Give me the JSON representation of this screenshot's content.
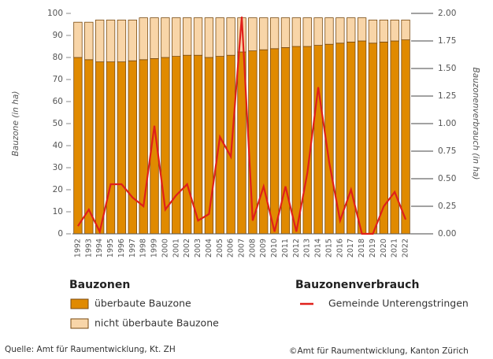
{
  "chart_data": {
    "type": "bar-line",
    "categories": [
      "1992",
      "1993",
      "1994",
      "1995",
      "1996",
      "1997",
      "1998",
      "1999",
      "2000",
      "2001",
      "2002",
      "2003",
      "2004",
      "2005",
      "2006",
      "2007",
      "2008",
      "2009",
      "2010",
      "2011",
      "2012",
      "2013",
      "2014",
      "2015",
      "2016",
      "2017",
      "2018",
      "2019",
      "2020",
      "2021",
      "2022"
    ],
    "ylabel": "Bauzone (in ha)",
    "y2label": "Bauzonenverbrauch (in ha)",
    "ylim": [
      0,
      100
    ],
    "yticks": [
      0,
      10,
      20,
      30,
      40,
      50,
      60,
      70,
      80,
      90,
      100
    ],
    "y2lim": [
      0,
      2
    ],
    "y2ticks": [
      {
        "value": 0,
        "label": "0.00"
      },
      {
        "value": 0.25,
        "label": "0.25"
      },
      {
        "value": 0.5,
        "label": "0.50"
      },
      {
        "value": 0.75,
        "label": "0.75"
      },
      {
        "value": 1,
        "label": "1.00"
      },
      {
        "value": 1.25,
        "label": "1.25"
      },
      {
        "value": 1.5,
        "label": "1.50"
      },
      {
        "value": 1.75,
        "label": "1.75"
      },
      {
        "value": 2,
        "label": "2.00"
      }
    ],
    "legend_titles": [
      "Bauzonen",
      "Bauzonenverbrauch"
    ],
    "series": [
      {
        "name": "überbaute Bauzone",
        "color": "#e08a00",
        "stack": true,
        "values": [
          80,
          79,
          78,
          78,
          78,
          78.5,
          79,
          79.5,
          80,
          80.5,
          81,
          81,
          80,
          80.5,
          81,
          82.5,
          83,
          83.5,
          84,
          84.5,
          85,
          85,
          85.5,
          86,
          86.5,
          87,
          87.5,
          86.5,
          87,
          87.5,
          88
        ]
      },
      {
        "name": "nicht überbaute Bauzone",
        "color": "#f8d5a8",
        "stack": true,
        "values": [
          16,
          17,
          19,
          19,
          19,
          18.5,
          19,
          18.5,
          18,
          17.5,
          17,
          17,
          18,
          17.5,
          17,
          15.5,
          15,
          14.5,
          14,
          13.5,
          13,
          13,
          12.5,
          12,
          11.5,
          11,
          10.5,
          10.5,
          10,
          9.5,
          9
        ]
      },
      {
        "name": "Gemeinde Unterengstringen",
        "color": "#e0201b",
        "axis": "y2",
        "values": [
          0.07,
          0.22,
          0.02,
          0.45,
          0.45,
          0.33,
          0.25,
          0.98,
          0.22,
          0.35,
          0.45,
          0.12,
          0.18,
          0.88,
          0.7,
          1.97,
          0.12,
          0.43,
          0.02,
          0.43,
          0.02,
          0.55,
          1.33,
          0.65,
          0.12,
          0.4,
          0,
          0,
          0.25,
          0.38,
          0.13
        ]
      }
    ],
    "source": "Quelle: Amt für Raumentwicklung, Kt. ZH",
    "copyright": "©Amt für Raumentwicklung, Kanton Zürich"
  }
}
